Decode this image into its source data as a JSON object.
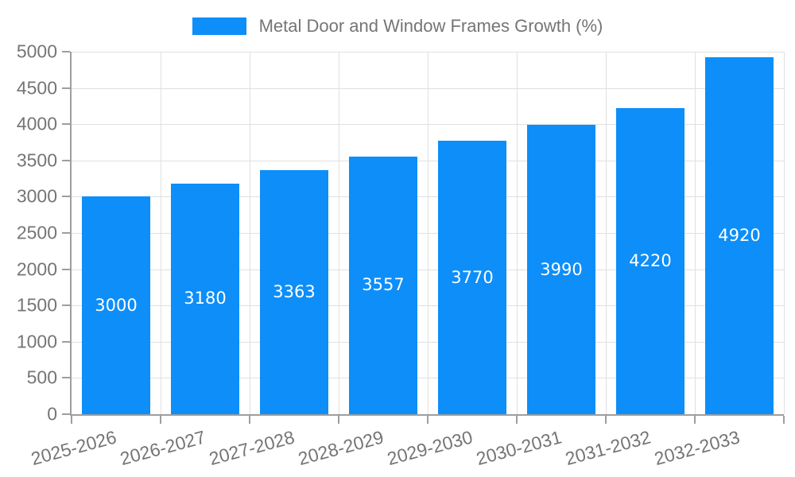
{
  "chart_data": {
    "type": "bar",
    "title": "Metal Door and Window Frames Growth (%)",
    "legend_entries": [
      "Metal Door and Window Frames Growth (%)"
    ],
    "categories": [
      "2025-2026",
      "2026-2027",
      "2027-2028",
      "2028-2029",
      "2029-2030",
      "2030-2031",
      "2031-2032",
      "2032-2033"
    ],
    "values": [
      3000,
      3180,
      3363,
      3557,
      3770,
      3990,
      4220,
      4920
    ],
    "bar_labels": [
      "3000",
      "3180",
      "3363",
      "3557",
      "3770",
      "3990",
      "4220",
      "4920"
    ],
    "xlabel": "",
    "ylabel": "",
    "ylim": [
      0,
      5000
    ],
    "ytick_step": 500,
    "yticks": [
      "0",
      "500",
      "1000",
      "1500",
      "2000",
      "2500",
      "3000",
      "3500",
      "4000",
      "4500",
      "5000"
    ],
    "grid": true,
    "legend_position": "top-center",
    "x_label_rotation_deg": -15,
    "colors": {
      "bar": "#0d8ef9",
      "bar_label_text": "#ffffff",
      "axis_text": "#757575",
      "grid_line": "#e0e0e0",
      "axis_line": "#9e9e9e",
      "background": "#ffffff"
    }
  }
}
